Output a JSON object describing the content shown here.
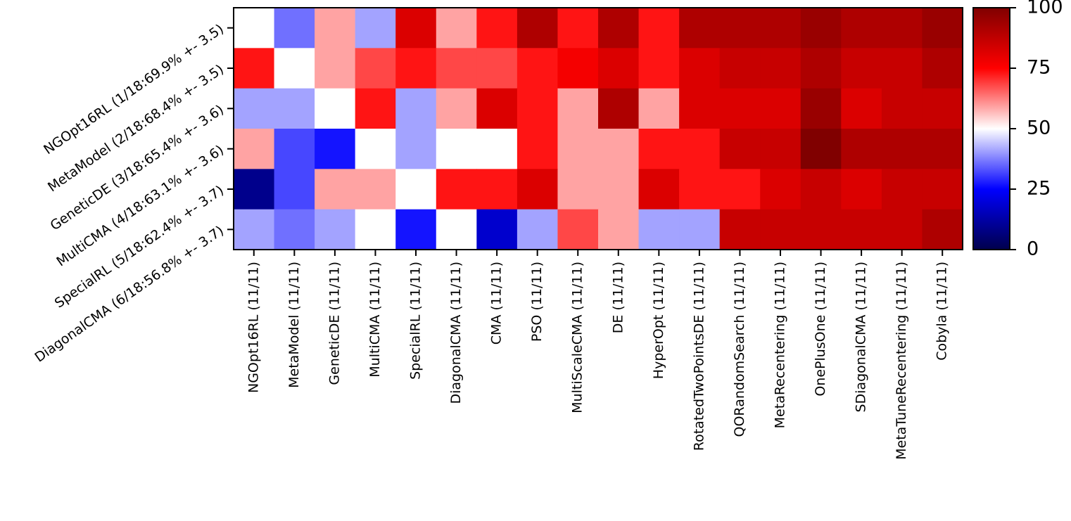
{
  "chart_data": {
    "type": "heatmap",
    "rows": [
      "NGOpt16RL (1/18:69.9% +- 3.5)",
      "MetaModel (2/18:68.4% +- 3.5)",
      "GeneticDE (3/18:65.4% +- 3.6)",
      "MultiCMA (4/18:63.1% +- 3.6)",
      "SpecialRL (5/18:62.4% +- 3.7)",
      "DiagonalCMA (6/18:56.8% +- 3.7)"
    ],
    "columns": [
      "NGOpt16RL (11/11)",
      "MetaModel (11/11)",
      "GeneticDE (11/11)",
      "MultiCMA (11/11)",
      "SpecialRL (11/11)",
      "DiagonalCMA (11/11)",
      "CMA (11/11)",
      "PSO (11/11)",
      "MultiScaleCMA (11/11)",
      "DE (11/11)",
      "HyperOpt (11/11)",
      "RotatedTwoPointsDE (11/11)",
      "QORandomSearch (11/11)",
      "MetaRecentering (11/11)",
      "OnePlusOne (11/11)",
      "SDiagonalCMA (11/11)",
      "MetaTuneRecentering (11/11)",
      "Cobyla (11/11)"
    ],
    "values": [
      [
        50,
        36,
        59,
        41,
        82,
        59,
        73,
        91,
        73,
        91,
        73,
        91,
        91,
        91,
        95,
        91,
        91,
        95
      ],
      [
        73,
        50,
        59,
        68,
        73,
        68,
        68,
        73,
        77,
        82,
        73,
        82,
        86,
        86,
        91,
        86,
        86,
        91
      ],
      [
        41,
        41,
        50,
        73,
        41,
        59,
        82,
        73,
        59,
        91,
        59,
        82,
        82,
        82,
        95,
        82,
        86,
        86
      ],
      [
        59,
        32,
        27,
        50,
        41,
        50,
        50,
        73,
        59,
        59,
        73,
        73,
        86,
        86,
        100,
        91,
        91,
        91
      ],
      [
        9,
        32,
        59,
        59,
        50,
        73,
        73,
        82,
        59,
        59,
        82,
        73,
        73,
        82,
        86,
        82,
        86,
        86
      ],
      [
        41,
        36,
        41,
        50,
        27,
        50,
        18,
        41,
        68,
        59,
        41,
        41,
        86,
        86,
        86,
        86,
        86,
        91
      ]
    ],
    "colormap": "seismic",
    "colorbar": {
      "min": 0,
      "max": 100,
      "ticks": [
        0,
        25,
        50,
        75,
        100
      ]
    }
  }
}
